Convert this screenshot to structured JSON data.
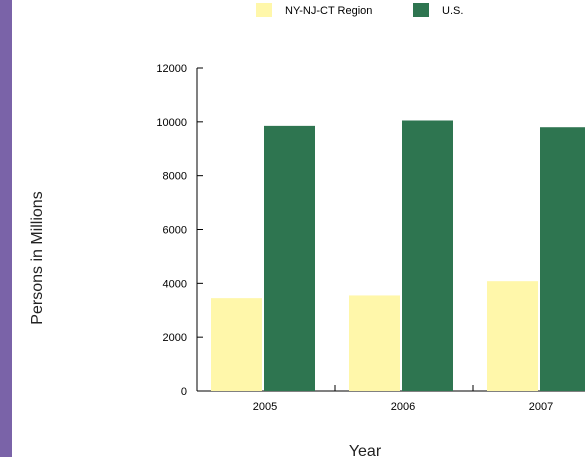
{
  "chart_data": {
    "type": "bar",
    "title": "",
    "xlabel": "Year",
    "ylabel": "Persons in Millions",
    "categories": [
      "2005",
      "2006",
      "2007"
    ],
    "series": [
      {
        "name": "NY-NJ-CT Region",
        "values": [
          3450,
          3550,
          4080
        ],
        "color": "#fff7aa"
      },
      {
        "name": "U.S.",
        "values": [
          9850,
          10050,
          9800
        ],
        "color": "#2e7550"
      }
    ],
    "ylim": [
      0,
      12000
    ],
    "yticks": [
      0,
      2000,
      4000,
      6000,
      8000,
      10000,
      12000
    ],
    "grid": false,
    "legend": "top"
  },
  "colors": {
    "accent_bar": "#7a63a8"
  }
}
